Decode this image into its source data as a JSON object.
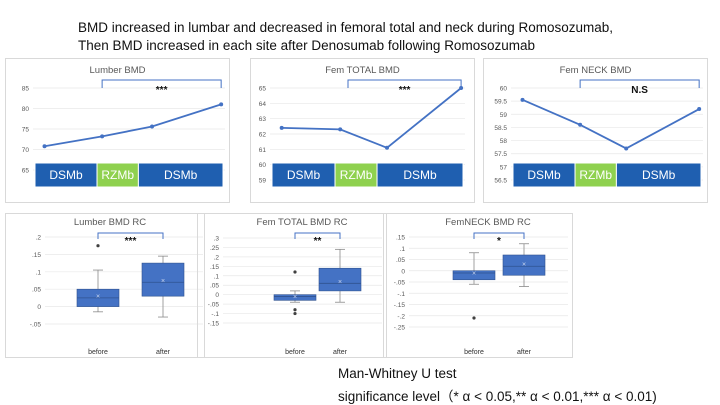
{
  "heading": {
    "line1": "BMD increased in lumbar and decreased in femoral total and neck during Romosozumab,",
    "line2": "Then BMD increased in each site after Denosumab following Romosozumab"
  },
  "footer": {
    "test_name": "Man-Whitney U test",
    "significance": "significance level（* α < 0.05,** α < 0.01,*** α < 0.01)"
  },
  "colors": {
    "line": "#4472c4",
    "box": "#4472c4",
    "dsmb": "#1f5fb0",
    "rzmb": "#8fd14f",
    "bracket": "#4472c4",
    "frame": "#d9d9d9",
    "grid": "#e8e8e8"
  },
  "chart_data": [
    {
      "type": "line",
      "title": "Lumber BMD",
      "yticks": [
        65,
        70,
        75,
        80,
        85
      ],
      "ylim": [
        65,
        85
      ],
      "values": [
        70.8,
        73.2,
        75.6,
        81.0
      ],
      "significance": "***",
      "treatment_phases": [
        "DSMb",
        "RZMb",
        "DSMb"
      ]
    },
    {
      "type": "line",
      "title": "Fem TOTAL BMD",
      "yticks": [
        59,
        60,
        61,
        62,
        63,
        64,
        65
      ],
      "ylim": [
        59,
        65
      ],
      "values": [
        62.4,
        62.3,
        61.1,
        65.0
      ],
      "significance": "***",
      "treatment_phases": [
        "DSMb",
        "RZMb",
        "DSMb"
      ]
    },
    {
      "type": "line",
      "title": "Fem NECK BMD",
      "yticks": [
        56.5,
        57,
        57.5,
        58,
        58.5,
        59,
        59.5,
        60
      ],
      "ylim": [
        56.5,
        60
      ],
      "values": [
        59.55,
        58.6,
        57.7,
        59.2
      ],
      "significance": "N.S",
      "treatment_phases": [
        "DSMb",
        "RZMb",
        "DSMb"
      ]
    },
    {
      "type": "box",
      "title": "Lumber BMD RC",
      "categories": [
        "before",
        "after"
      ],
      "yticks": [
        -0.05,
        0,
        0.05,
        0.1,
        0.15,
        0.2
      ],
      "ylim": [
        -0.05,
        0.2
      ],
      "boxes": [
        {
          "min": -0.015,
          "q1": 0.0,
          "median": 0.025,
          "q3": 0.05,
          "max": 0.105,
          "mean": 0.03,
          "outliers": [
            0.175
          ]
        },
        {
          "min": -0.03,
          "q1": 0.03,
          "median": 0.07,
          "q3": 0.125,
          "max": 0.145,
          "mean": 0.075,
          "outliers": []
        }
      ],
      "significance": "***"
    },
    {
      "type": "box",
      "title": "Fem TOTAL BMD RC",
      "categories": [
        "before",
        "after"
      ],
      "yticks": [
        -0.15,
        -0.1,
        -0.05,
        0,
        0.05,
        0.1,
        0.15,
        0.2,
        0.25,
        0.3
      ],
      "ylim": [
        -0.15,
        0.3
      ],
      "boxes": [
        {
          "min": -0.04,
          "q1": -0.03,
          "median": -0.01,
          "q3": 0.0,
          "max": 0.02,
          "mean": -0.01,
          "outliers": [
            0.12,
            -0.08,
            -0.1
          ]
        },
        {
          "min": -0.04,
          "q1": 0.02,
          "median": 0.06,
          "q3": 0.14,
          "max": 0.24,
          "mean": 0.07,
          "outliers": []
        }
      ],
      "significance": "**"
    },
    {
      "type": "box",
      "title": "FemNECK BMD RC",
      "categories": [
        "before",
        "after"
      ],
      "yticks": [
        -0.25,
        -0.2,
        -0.15,
        -0.1,
        -0.05,
        0,
        0.05,
        0.1,
        0.15
      ],
      "ylim": [
        -0.25,
        0.15
      ],
      "boxes": [
        {
          "min": -0.06,
          "q1": -0.04,
          "median": -0.01,
          "q3": 0.0,
          "max": 0.08,
          "mean": -0.01,
          "outliers": [
            -0.21
          ]
        },
        {
          "min": -0.07,
          "q1": -0.02,
          "median": 0.02,
          "q3": 0.07,
          "max": 0.12,
          "mean": 0.03,
          "outliers": []
        }
      ],
      "significance": "*"
    }
  ]
}
